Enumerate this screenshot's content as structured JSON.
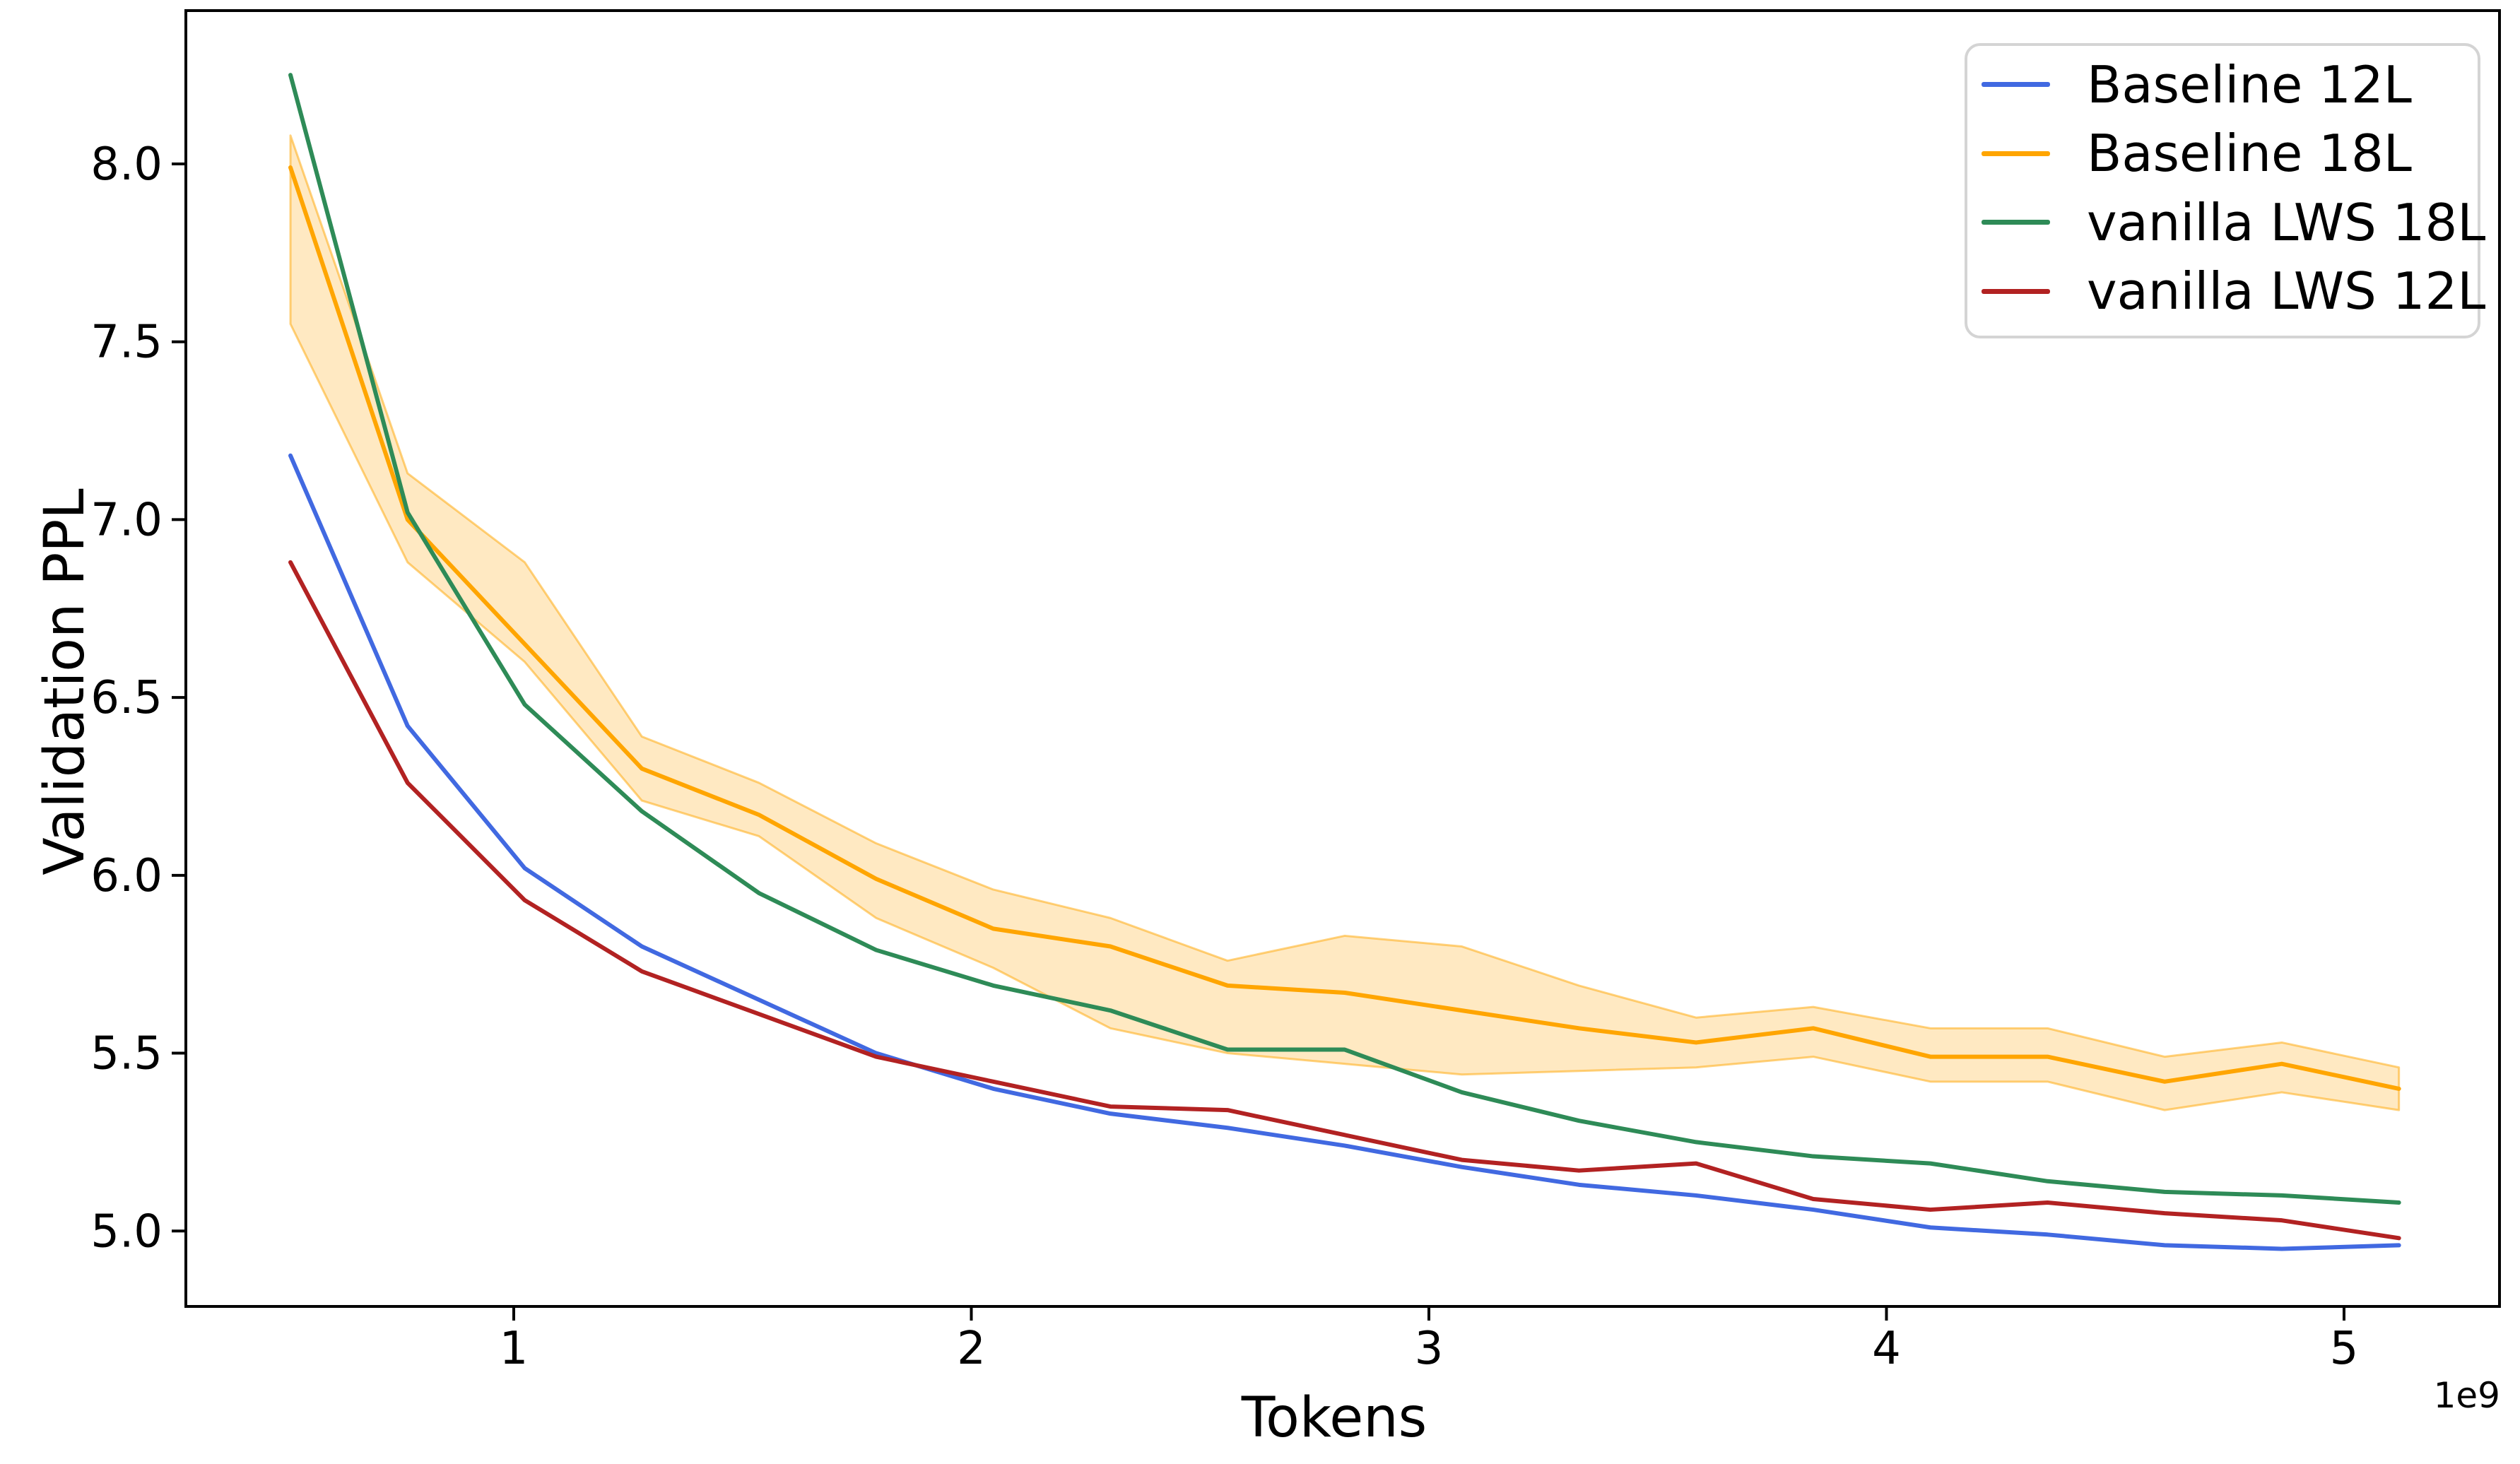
{
  "figure": {
    "xlabel": "Tokens",
    "ylabel": "Validation PPL",
    "axis_offset_label": "1e9",
    "background_color": "#ffffff",
    "text_color": "#000000",
    "spine_color": "#000000"
  },
  "legend": {
    "position": "upper right",
    "items": [
      {
        "label": "Baseline 12L",
        "color": "#4169e1"
      },
      {
        "label": "Baseline 18L",
        "color": "#ffa500"
      },
      {
        "label": "vanilla LWS 18L",
        "color": "#2e8b57"
      },
      {
        "label": "vanilla LWS 12L",
        "color": "#b22222"
      }
    ]
  },
  "chart_data": {
    "type": "line",
    "title": "",
    "xlabel": "Tokens",
    "ylabel": "Validation PPL",
    "x_unit": "1e9 tokens",
    "x": [
      0.512,
      0.768,
      1.024,
      1.28,
      1.536,
      1.792,
      2.048,
      2.304,
      2.56,
      2.816,
      3.072,
      3.328,
      3.584,
      3.84,
      4.096,
      4.352,
      4.608,
      4.864,
      5.12
    ],
    "series": [
      {
        "name": "Baseline 12L",
        "color": "#4169e1",
        "values": [
          7.18,
          6.42,
          6.02,
          5.8,
          5.65,
          5.5,
          5.4,
          5.33,
          5.29,
          5.24,
          5.18,
          5.13,
          5.1,
          5.06,
          5.01,
          4.99,
          4.96,
          4.95,
          4.96
        ]
      },
      {
        "name": "Baseline 18L",
        "color": "#ffa500",
        "values": [
          7.99,
          7.0,
          6.65,
          6.3,
          6.17,
          5.99,
          5.85,
          5.8,
          5.69,
          5.67,
          5.62,
          5.57,
          5.53,
          5.57,
          5.49,
          5.49,
          5.42,
          5.47,
          5.4
        ],
        "band_upper": [
          8.08,
          7.13,
          6.88,
          6.39,
          6.26,
          6.09,
          5.96,
          5.88,
          5.76,
          5.83,
          5.8,
          5.69,
          5.6,
          5.63,
          5.57,
          5.57,
          5.49,
          5.53,
          5.46
        ],
        "band_lower": [
          7.55,
          6.88,
          6.6,
          6.21,
          6.11,
          5.88,
          5.74,
          5.57,
          5.5,
          5.47,
          5.44,
          5.45,
          5.46,
          5.49,
          5.42,
          5.42,
          5.34,
          5.39,
          5.34
        ]
      },
      {
        "name": "vanilla LWS 18L",
        "color": "#2e8b57",
        "values": [
          8.25,
          7.02,
          6.48,
          6.18,
          5.95,
          5.79,
          5.69,
          5.62,
          5.51,
          5.51,
          5.39,
          5.31,
          5.25,
          5.21,
          5.19,
          5.14,
          5.11,
          5.1,
          5.08
        ]
      },
      {
        "name": "vanilla LWS 12L",
        "color": "#b22222",
        "values": [
          6.88,
          6.26,
          5.93,
          5.73,
          5.61,
          5.49,
          5.42,
          5.35,
          5.34,
          5.27,
          5.2,
          5.17,
          5.19,
          5.09,
          5.06,
          5.08,
          5.05,
          5.03,
          4.98
        ]
      }
    ],
    "band_series": "Baseline 18L",
    "band_alpha": 0.24,
    "band_edge_alpha": 0.5,
    "xticks": [
      1,
      2,
      3,
      4,
      5
    ],
    "xtick_labels": [
      "1",
      "2",
      "3",
      "4",
      "5"
    ],
    "yticks": [
      8.0,
      7.5,
      7.0,
      6.5,
      6.0,
      5.5,
      5.0
    ],
    "ytick_labels": [
      "8.0",
      "7.5",
      "7.0",
      "6.5",
      "6.0",
      "5.5",
      "5.0"
    ],
    "xlim": [
      0.2834,
      5.3398
    ],
    "ylim": [
      4.788,
      8.431
    ],
    "grid": false,
    "legend_position": "upper right"
  }
}
